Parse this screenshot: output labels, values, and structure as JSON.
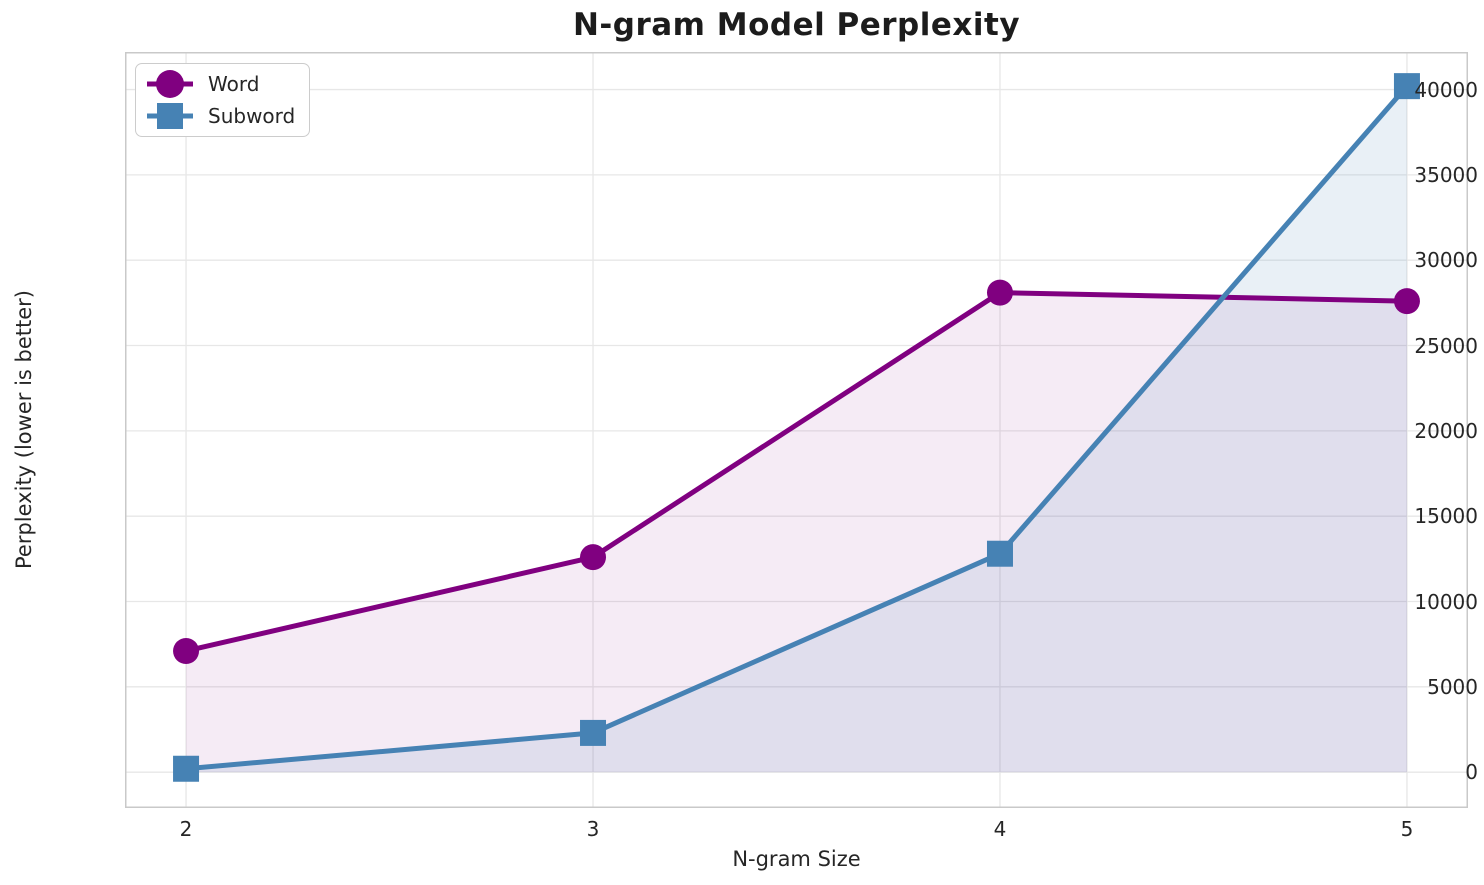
{
  "chart_data": {
    "type": "line",
    "title": "N-gram Model Perplexity",
    "xlabel": "N-gram Size",
    "ylabel": "Perplexity (lower is better)",
    "x": [
      2,
      3,
      4,
      5
    ],
    "series": [
      {
        "name": "Word",
        "values": [
          7100,
          12600,
          28100,
          27600
        ],
        "color": "#800080",
        "marker": "circle",
        "fill_alpha": 0.08
      },
      {
        "name": "Subword",
        "values": [
          200,
          2300,
          12800,
          40200
        ],
        "color": "#4682b4",
        "marker": "square",
        "fill_alpha": 0.12
      }
    ],
    "xticks": [
      2,
      3,
      4,
      5
    ],
    "yticks": [
      0,
      5000,
      10000,
      15000,
      20000,
      25000,
      30000,
      35000,
      40000
    ],
    "xlim": [
      1.85,
      5.15
    ],
    "ylim": [
      -2100,
      42200
    ],
    "grid": true,
    "legend_position": "upper left",
    "fill_to_baseline": 0,
    "line_width": 5,
    "marker_radius": 13,
    "grid_color": "#e7e7e7",
    "spine_color": "#c9c9c9",
    "text_color": "#262626",
    "title_color": "#1c1c1c",
    "background_color": "#ffffff"
  }
}
